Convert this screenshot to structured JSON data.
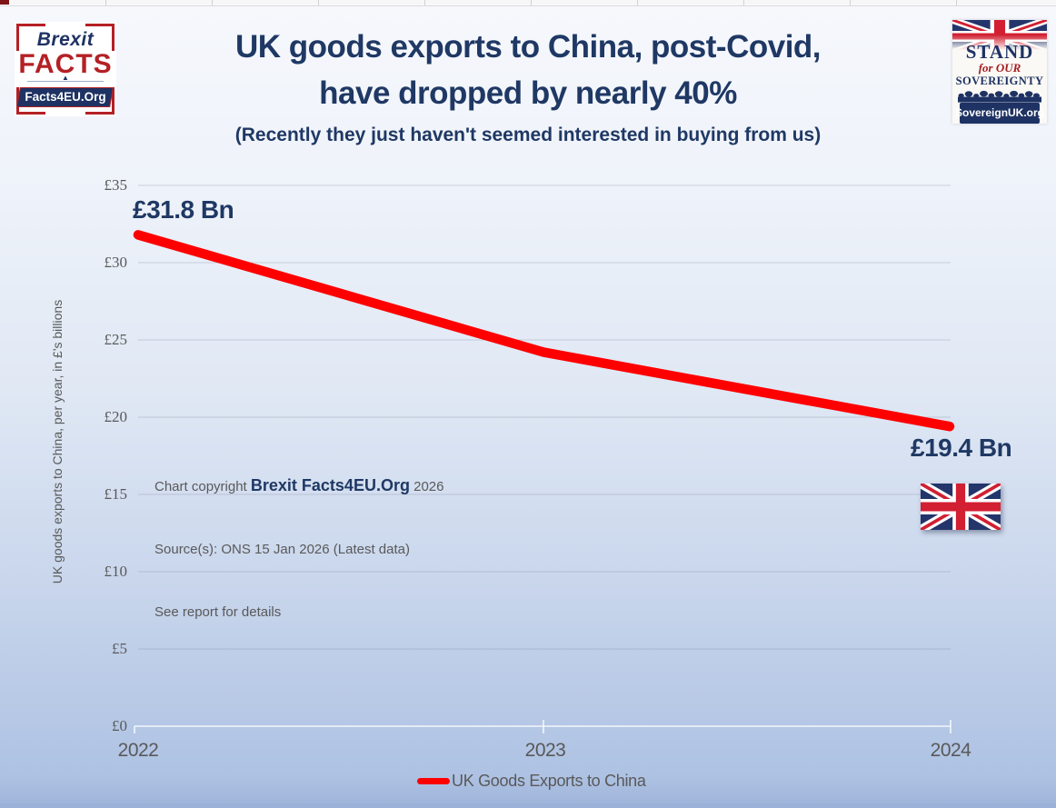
{
  "header": {
    "title_line1": "UK goods exports to China, post-Covid,",
    "title_line2": "have dropped by nearly 40%",
    "subtitle": "(Recently they just haven't seemed interested in buying from us)"
  },
  "logos": {
    "brexit_facts": {
      "top": "Brexit",
      "main": "FACTS",
      "banner": "Facts4EU.Org"
    },
    "sovereign": {
      "line1": "STAND",
      "line2": "for OUR",
      "line3": "SOVEREIGNTY",
      "banner": "SovereignUK.org"
    }
  },
  "notes": {
    "copyright_prefix": "Chart copyright ",
    "copyright_brand": "Brexit Facts4EU.Org",
    "copyright_suffix": " 2026",
    "source_line": "Source(s): ONS 15 Jan 2026 (Latest data)",
    "report_line": "See report for details"
  },
  "chart_data": {
    "type": "line",
    "title": "UK goods exports to China, post-Covid, have dropped by nearly 40%",
    "x": [
      2022,
      2023,
      2024
    ],
    "x_tick_labels": [
      "2022",
      "2023",
      "2024"
    ],
    "series": [
      {
        "name": "UK Goods Exports to China",
        "values": [
          31.8,
          24.2,
          19.4
        ],
        "color": "#fe0000"
      }
    ],
    "ylabel": "UK goods exports to China, per year, in £'s billions",
    "ylim": [
      0,
      35
    ],
    "y_tick_step": 5,
    "y_tick_labels": [
      "£35",
      "£30",
      "£25",
      "£20",
      "£15",
      "£10",
      "£5",
      "£0"
    ],
    "grid": "horizontal",
    "legend": {
      "position": "bottom",
      "label": "UK Goods Exports to China"
    },
    "annotations": {
      "start_label": "£31.8 Bn",
      "end_label": "£19.4 Bn"
    }
  },
  "colors": {
    "navy": "#1f3864",
    "line_red": "#fe0000",
    "logo_red": "#b42025",
    "flag_red": "#d21f32",
    "flag_navy": "#23356b",
    "text_gray": "#595959"
  }
}
